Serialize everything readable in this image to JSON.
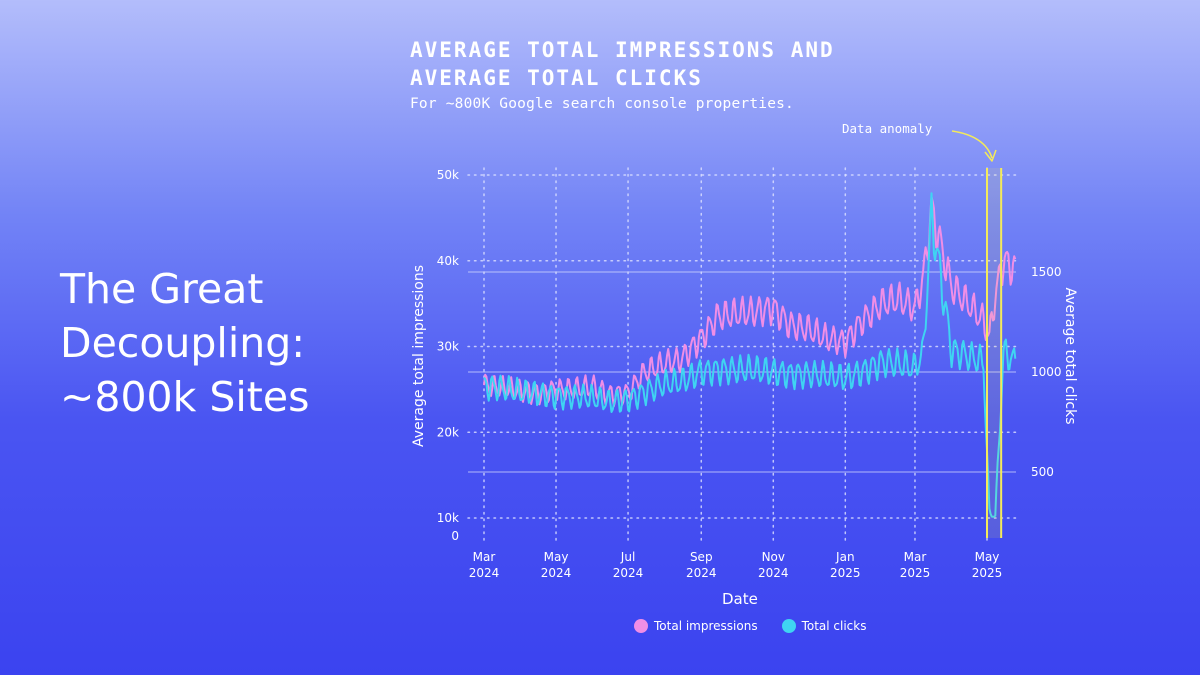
{
  "slide": {
    "title": "The Great Decoupling: ~800k Sites"
  },
  "chart_data": {
    "type": "line",
    "title": "AVERAGE TOTAL IMPRESSIONS AND AVERAGE TOTAL CLICKS",
    "subtitle": "For ~800K Google search console properties.",
    "annotation": "Data anomaly",
    "xlabel": "Date",
    "ylabel_left": "Average total impressions",
    "ylabel_right": "Average total clicks",
    "left_ticks": [
      "0",
      "10k",
      "20k",
      "30k",
      "40k",
      "50k"
    ],
    "left_tick_values": [
      0,
      10000,
      20000,
      30000,
      40000,
      50000
    ],
    "right_ticks": [
      "500",
      "1000",
      "1500"
    ],
    "right_tick_values": [
      500,
      1000,
      1500
    ],
    "x_ticks": [
      {
        "month": "Mar",
        "year": "2024"
      },
      {
        "month": "May",
        "year": "2024"
      },
      {
        "month": "Jul",
        "year": "2024"
      },
      {
        "month": "Sep",
        "year": "2024"
      },
      {
        "month": "Nov",
        "year": "2024"
      },
      {
        "month": "Jan",
        "year": "2025"
      },
      {
        "month": "Mar",
        "year": "2025"
      },
      {
        "month": "May",
        "year": "2025"
      }
    ],
    "x_tick_dates": [
      "2024-03-01",
      "2024-05-01",
      "2024-07-01",
      "2024-09-01",
      "2024-11-01",
      "2025-01-01",
      "2025-03-01",
      "2025-05-01"
    ],
    "anomaly_range": [
      "2025-05-01",
      "2025-05-13"
    ],
    "grid": true,
    "legend_position": "bottom",
    "series": [
      {
        "name": "Total impressions",
        "axis": "left",
        "color": "#f08ee6",
        "x": [
          "2024-03-01",
          "2024-03-15",
          "2024-04-01",
          "2024-04-15",
          "2024-05-01",
          "2024-05-15",
          "2024-06-01",
          "2024-06-15",
          "2024-07-01",
          "2024-07-15",
          "2024-08-01",
          "2024-08-15",
          "2024-09-01",
          "2024-09-15",
          "2024-10-01",
          "2024-10-15",
          "2024-11-01",
          "2024-11-15",
          "2024-12-01",
          "2024-12-15",
          "2025-01-01",
          "2025-01-15",
          "2025-02-01",
          "2025-02-15",
          "2025-03-01",
          "2025-03-08",
          "2025-03-15",
          "2025-04-01",
          "2025-04-15",
          "2025-04-28",
          "2025-05-03",
          "2025-05-08",
          "2025-05-15",
          "2025-05-25"
        ],
        "values": [
          25500,
          25200,
          24800,
          24600,
          25000,
          25000,
          25300,
          24400,
          24600,
          27000,
          28000,
          28500,
          31000,
          33500,
          33800,
          34000,
          34500,
          32500,
          32000,
          31000,
          30500,
          33000,
          35000,
          35500,
          34500,
          38000,
          46000,
          37000,
          35000,
          33000,
          31000,
          36000,
          40000,
          39000
        ]
      },
      {
        "name": "Total clicks",
        "axis": "right",
        "color": "#3fd4f2",
        "x": [
          "2024-03-01",
          "2024-03-15",
          "2024-04-01",
          "2024-04-15",
          "2024-05-01",
          "2024-05-15",
          "2024-06-01",
          "2024-06-15",
          "2024-07-01",
          "2024-07-15",
          "2024-08-01",
          "2024-08-15",
          "2024-09-01",
          "2024-09-15",
          "2024-10-01",
          "2024-10-15",
          "2024-11-01",
          "2024-11-15",
          "2024-12-01",
          "2024-12-15",
          "2025-01-01",
          "2025-01-15",
          "2025-02-01",
          "2025-02-15",
          "2025-03-01",
          "2025-03-08",
          "2025-03-15",
          "2025-04-01",
          "2025-04-15",
          "2025-04-28",
          "2025-05-03",
          "2025-05-08",
          "2025-05-15",
          "2025-05-25"
        ],
        "values": [
          930,
          920,
          900,
          890,
          880,
          880,
          870,
          850,
          860,
          900,
          940,
          950,
          1000,
          1010,
          1010,
          1010,
          1000,
          990,
          990,
          980,
          970,
          1000,
          1050,
          1040,
          1020,
          1100,
          1780,
          1110,
          1080,
          1050,
          300,
          280,
          1100,
          1050
        ]
      }
    ]
  }
}
